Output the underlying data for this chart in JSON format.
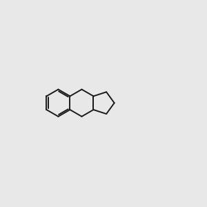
{
  "bg_color": "#e8e8e8",
  "bond_color": "#1a1a1a",
  "oxygen_color": "#cc0000",
  "nitrogen_color": "#2222cc",
  "chlorine_color": "#00aa00",
  "ho_color": "#4488aa",
  "lw": 1.4,
  "dlw": 1.2,
  "fs": 7.0
}
